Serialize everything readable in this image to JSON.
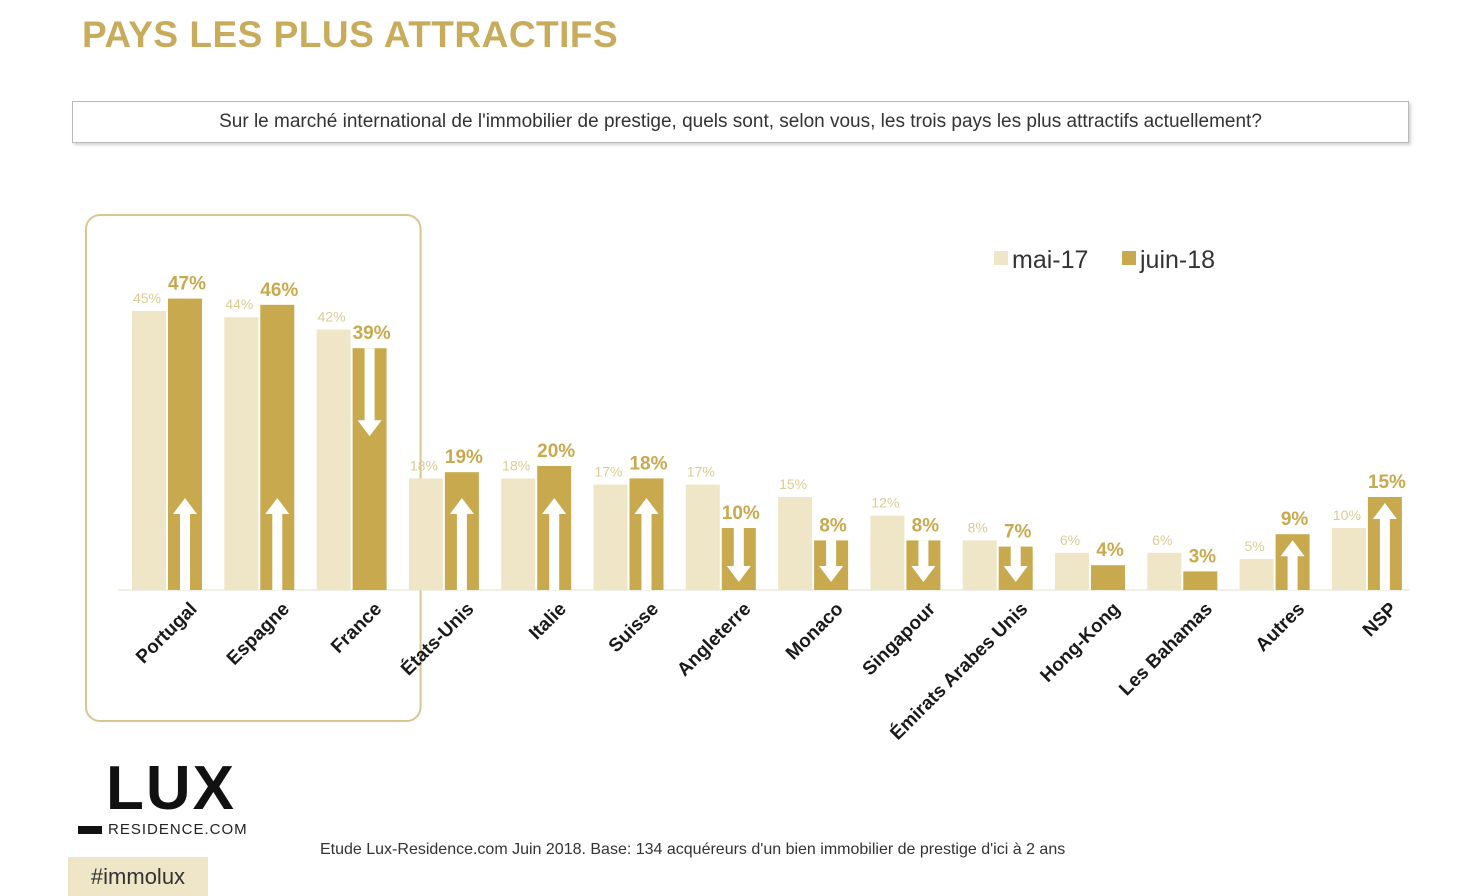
{
  "title": "PAYS LES PLUS ATTRACTIFS",
  "question": "Sur le marché international de l'immobilier de prestige, quels sont, selon vous, les trois pays les plus attractifs actuellement?",
  "logo": {
    "main": "LUX",
    "sub": "RESIDENCE.COM"
  },
  "source": "Etude Lux-Residence.com Juin 2018. Base:  134 acquéreurs d'un bien immobilier de prestige d'ici à 2 ans",
  "hashtag": "#immolux",
  "colors": {
    "title": "#c8ac5c",
    "series_2017": "#efe6c8",
    "series_2018": "#c9a94e",
    "highlight_border": "#d9c68e"
  },
  "chart_data": {
    "type": "bar",
    "categories": [
      "Portugal",
      "Espagne",
      "France",
      "États-Unis",
      "Italie",
      "Suisse",
      "Angleterre",
      "Monaco",
      "Singapour",
      "Émirats Arabes Unis",
      "Hong-Kong",
      "Les Bahamas",
      "Autres",
      "NSP"
    ],
    "series": [
      {
        "name": "mai-17",
        "values": [
          45,
          44,
          42,
          18,
          18,
          17,
          17,
          15,
          12,
          8,
          6,
          6,
          5,
          10
        ],
        "labels": [
          "45%",
          "44%",
          "42%",
          "18%",
          "18%",
          "17%",
          "17%",
          "15%",
          "12%",
          "8%",
          "6%",
          "6%",
          "5%",
          "10%"
        ]
      },
      {
        "name": "juin-18",
        "values": [
          47,
          46,
          39,
          19,
          20,
          18,
          10,
          8,
          8,
          7,
          4,
          3,
          9,
          15
        ],
        "labels": [
          "47%",
          "46%",
          "39%",
          "19%",
          "20%",
          "18%",
          "10%",
          "8%",
          "8%",
          "7%",
          "4%",
          "3%",
          "9%",
          "15%"
        ]
      }
    ],
    "trend": [
      "up",
      "up",
      "down",
      "up",
      "up",
      "up",
      "down",
      "down",
      "down",
      "down",
      "none",
      "none",
      "up",
      "up"
    ],
    "highlighted_categories": [
      "Portugal",
      "Espagne",
      "France"
    ],
    "legend_position": "top-right",
    "grid": false,
    "ylim": [
      0,
      50
    ]
  }
}
